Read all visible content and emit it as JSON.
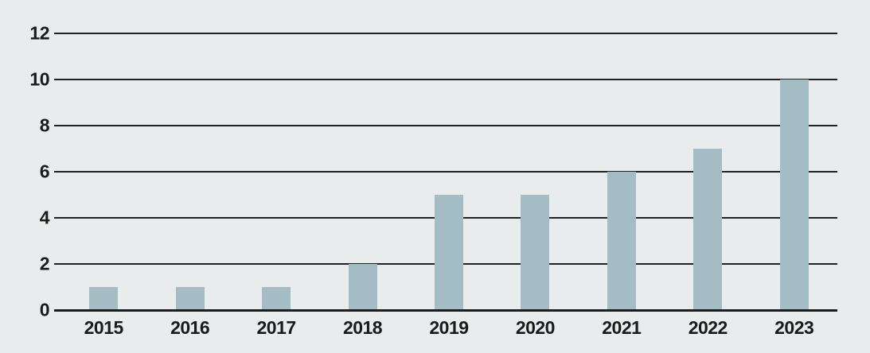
{
  "chart_data": {
    "type": "bar",
    "title": "",
    "categories": [
      "2015",
      "2016",
      "2017",
      "2018",
      "2019",
      "2020",
      "2021",
      "2022",
      "2023"
    ],
    "values": [
      1,
      1,
      1,
      2,
      5,
      5,
      6,
      7,
      10
    ],
    "xlabel": "",
    "ylabel": "",
    "ylim": [
      0,
      12
    ],
    "y_ticks": [
      12,
      10,
      8,
      6,
      4,
      2,
      0
    ],
    "grid": "horizontal",
    "legend": "none",
    "colors": {
      "background": "#e9eced",
      "bar": "#a4bcc4",
      "gridline": "#202223",
      "axis": "#1a1c1d",
      "text": "#1a1a1a"
    }
  }
}
